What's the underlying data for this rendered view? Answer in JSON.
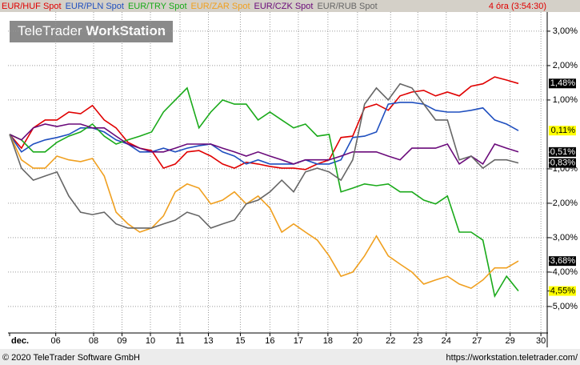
{
  "chart_data": {
    "type": "line",
    "period": "4 óra (3:54:30)",
    "watermark": {
      "brand": "TeleTrader",
      "product": "WorkStation"
    },
    "footer": {
      "copyright": "© 2020 TeleTrader Software GmbH",
      "url": "https://workstation.teletrader.com/"
    },
    "x": [
      0,
      1,
      2,
      3,
      4,
      5,
      6,
      7,
      8,
      9,
      10,
      11,
      12,
      13,
      14,
      15,
      16,
      17,
      18,
      19,
      20,
      21,
      22,
      23,
      24,
      25,
      26,
      27,
      28,
      29,
      30,
      31,
      32,
      33,
      34,
      35,
      36,
      37,
      38,
      39,
      40,
      41,
      42,
      43
    ],
    "xlim": [
      0,
      45.5
    ],
    "xticks": [
      {
        "value": 0,
        "label": "dec."
      },
      {
        "value": 3.9,
        "label": "06"
      },
      {
        "value": 7.1,
        "label": "08"
      },
      {
        "value": 9.5,
        "label": "09"
      },
      {
        "value": 11.9,
        "label": "10"
      },
      {
        "value": 14.4,
        "label": "11"
      },
      {
        "value": 16.8,
        "label": "13"
      },
      {
        "value": 19.5,
        "label": "15"
      },
      {
        "value": 22.0,
        "label": "16"
      },
      {
        "value": 24.4,
        "label": "17"
      },
      {
        "value": 26.9,
        "label": "18"
      },
      {
        "value": 29.4,
        "label": "20"
      },
      {
        "value": 32.2,
        "label": "22"
      },
      {
        "value": 34.5,
        "label": "23"
      },
      {
        "value": 36.9,
        "label": "24"
      },
      {
        "value": 39.5,
        "label": "27"
      },
      {
        "value": 42.3,
        "label": "29"
      },
      {
        "value": 44.9,
        "label": "30"
      }
    ],
    "ylim": [
      -5.77,
      3.58
    ],
    "yticks": [
      {
        "value": 3,
        "label": "3,00%"
      },
      {
        "value": 2,
        "label": "2,00%"
      },
      {
        "value": 1,
        "label": "1,00%"
      },
      {
        "value": -1,
        "label": "-1,00%"
      },
      {
        "value": -2,
        "label": "-2,00%"
      },
      {
        "value": -3,
        "label": "-3,00%"
      },
      {
        "value": -4,
        "label": "-4,00%"
      },
      {
        "value": -5,
        "label": "-5,00%"
      }
    ],
    "grid": true,
    "series": [
      {
        "name": "EUR/HUF Spot",
        "color": "#e00000",
        "last_label": "1,48%",
        "label_color": "#000000",
        "values": [
          0,
          -0.4,
          0.19,
          0.42,
          0.42,
          0.65,
          0.6,
          0.84,
          0.42,
          0.19,
          -0.23,
          -0.4,
          -0.47,
          -0.98,
          -0.86,
          -0.51,
          -0.47,
          -0.63,
          -0.86,
          -0.98,
          -0.81,
          -0.86,
          -0.93,
          -0.98,
          -0.98,
          -1.02,
          -0.86,
          -0.74,
          -0.09,
          -0.05,
          0.77,
          0.88,
          0.7,
          1.12,
          1.23,
          1.28,
          1.12,
          1.23,
          1.12,
          1.4,
          1.47,
          1.67,
          1.58,
          1.48
        ]
      },
      {
        "name": "EUR/PLN Spot",
        "color": "#1f4fbf",
        "last_label": "0,11%",
        "label_color": "#ffff00",
        "values": [
          0,
          -0.51,
          -0.28,
          -0.16,
          -0.09,
          0,
          0.19,
          0.19,
          0.07,
          -0.16,
          -0.28,
          -0.51,
          -0.51,
          -0.4,
          -0.51,
          -0.4,
          -0.33,
          -0.28,
          -0.51,
          -0.63,
          -0.86,
          -0.74,
          -0.86,
          -0.86,
          -0.86,
          -0.74,
          -0.86,
          -0.86,
          -0.74,
          -0.09,
          -0.05,
          0.07,
          0.88,
          0.93,
          0.93,
          0.88,
          0.7,
          0.65,
          0.65,
          0.7,
          0.77,
          0.42,
          0.3,
          0.11
        ]
      },
      {
        "name": "EUR/TRY Spot",
        "color": "#1aaa1a",
        "last_label": "-4,55%",
        "label_color": "#ffff00",
        "values": [
          0,
          -0.16,
          -0.51,
          -0.51,
          -0.23,
          -0.05,
          0.07,
          0.3,
          -0.05,
          -0.28,
          -0.16,
          -0.05,
          0.07,
          0.65,
          1.0,
          1.35,
          0.19,
          0.65,
          1.0,
          0.88,
          0.88,
          0.42,
          0.65,
          0.42,
          0.19,
          0.3,
          -0.05,
          0,
          -1.67,
          -1.56,
          -1.44,
          -1.49,
          -1.44,
          -1.67,
          -1.67,
          -1.91,
          -2.02,
          -1.79,
          -2.84,
          -2.84,
          -3.07,
          -4.7,
          -4.12,
          -4.55
        ]
      },
      {
        "name": "EUR/ZAR Spot",
        "color": "#f0a020",
        "last_label": "-3,68%",
        "label_color": "#000000",
        "values": [
          0,
          -0.74,
          -0.98,
          -0.98,
          -0.63,
          -0.74,
          -0.79,
          -0.7,
          -1.21,
          -2.26,
          -2.6,
          -2.84,
          -2.72,
          -2.37,
          -1.67,
          -1.44,
          -1.56,
          -2.02,
          -1.91,
          -1.67,
          -2.02,
          -1.79,
          -2.14,
          -2.84,
          -2.6,
          -2.84,
          -3.07,
          -3.53,
          -4.12,
          -4.0,
          -3.53,
          -2.95,
          -3.53,
          -3.77,
          -4.0,
          -4.35,
          -4.23,
          -4.12,
          -4.35,
          -4.47,
          -4.23,
          -3.88,
          -3.88,
          -3.68
        ]
      },
      {
        "name": "EUR/CZK Spot",
        "color": "#6a0a7a",
        "last_label": "-0,51%",
        "label_color": "#000000",
        "values": [
          0,
          -0.16,
          0.19,
          0.3,
          0.23,
          0.3,
          0.3,
          0.19,
          0.19,
          -0.05,
          -0.28,
          -0.4,
          -0.51,
          -0.51,
          -0.4,
          -0.28,
          -0.28,
          -0.28,
          -0.4,
          -0.51,
          -0.63,
          -0.51,
          -0.63,
          -0.74,
          -0.86,
          -0.74,
          -0.74,
          -0.74,
          -0.63,
          -0.51,
          -0.51,
          -0.51,
          -0.63,
          -0.74,
          -0.4,
          -0.4,
          -0.4,
          -0.28,
          -0.86,
          -0.63,
          -0.86,
          -0.28,
          -0.4,
          -0.51
        ]
      },
      {
        "name": "EUR/RUB Spot",
        "color": "#666666",
        "last_label": "-0,83%",
        "label_color": "#000000",
        "values": [
          0,
          -0.98,
          -1.33,
          -1.21,
          -1.09,
          -1.79,
          -2.26,
          -2.33,
          -2.26,
          -2.6,
          -2.72,
          -2.72,
          -2.72,
          -2.6,
          -2.49,
          -2.26,
          -2.37,
          -2.72,
          -2.6,
          -2.49,
          -2.02,
          -1.91,
          -1.67,
          -1.33,
          -1.67,
          -1.09,
          -0.98,
          -1.09,
          -1.33,
          -0.74,
          0.88,
          1.35,
          1.0,
          1.47,
          1.35,
          0.88,
          0.42,
          0.42,
          -0.74,
          -0.63,
          -0.98,
          -0.74,
          -0.74,
          -0.83
        ]
      }
    ]
  }
}
